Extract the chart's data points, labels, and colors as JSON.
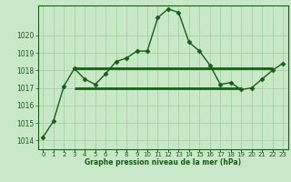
{
  "x": [
    0,
    1,
    2,
    3,
    4,
    5,
    6,
    7,
    8,
    9,
    10,
    11,
    12,
    13,
    14,
    15,
    16,
    17,
    18,
    19,
    20,
    21,
    22,
    23
  ],
  "y_line": [
    1014.2,
    1015.1,
    1017.1,
    1018.1,
    1017.5,
    1017.2,
    1017.8,
    1018.5,
    1018.7,
    1019.1,
    1019.1,
    1021.0,
    1021.5,
    1021.3,
    1019.6,
    1019.1,
    1018.3,
    1017.2,
    1017.3,
    1016.9,
    1017.0,
    1017.5,
    1018.0,
    1018.4
  ],
  "x_flat1_start": 3,
  "x_flat1_end": 22,
  "y_flat1_val": 1018.1,
  "x_flat2_start": 3,
  "x_flat2_end": 19,
  "y_flat2_val": 1017.0,
  "line_color": "#1a5c1a",
  "bg_color": "#c8e8c8",
  "grid_color": "#9fcc9f",
  "xlabel": "Graphe pression niveau de la mer (hPa)",
  "ylim_min": 1013.5,
  "ylim_max": 1021.7,
  "xlim_min": -0.5,
  "xlim_max": 23.5,
  "yticks": [
    1014,
    1015,
    1016,
    1017,
    1018,
    1019,
    1020
  ],
  "xtick_labels": [
    "0",
    "1",
    "2",
    "3",
    "4",
    "5",
    "6",
    "7",
    "8",
    "9",
    "10",
    "11",
    "12",
    "13",
    "14",
    "15",
    "16",
    "17",
    "18",
    "19",
    "20",
    "21",
    "22",
    "23"
  ]
}
